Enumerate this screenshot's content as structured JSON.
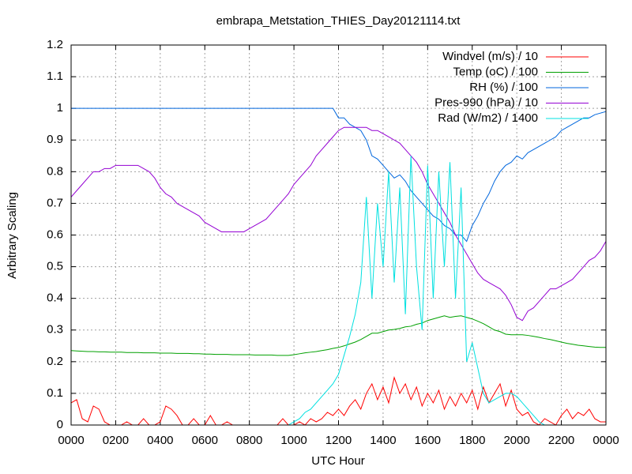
{
  "chart_data": {
    "type": "line",
    "title": "embrapa_Metstation_THIES_Day20121114.txt",
    "xlabel": "UTC Hour",
    "ylabel": "Arbitrary Scaling",
    "xlim": [
      0,
      24
    ],
    "ylim": [
      0,
      1.2
    ],
    "xticks": [
      {
        "value": 0,
        "label": "0000"
      },
      {
        "value": 2,
        "label": "0200"
      },
      {
        "value": 4,
        "label": "0400"
      },
      {
        "value": 6,
        "label": "0600"
      },
      {
        "value": 8,
        "label": "0800"
      },
      {
        "value": 10,
        "label": "1000"
      },
      {
        "value": 12,
        "label": "1200"
      },
      {
        "value": 14,
        "label": "1400"
      },
      {
        "value": 16,
        "label": "1600"
      },
      {
        "value": 18,
        "label": "1800"
      },
      {
        "value": 20,
        "label": "2000"
      },
      {
        "value": 22,
        "label": "2200"
      },
      {
        "value": 24,
        "label": "0000"
      }
    ],
    "yticks": [
      0,
      0.1,
      0.2,
      0.3,
      0.4,
      0.5,
      0.6,
      0.7,
      0.8,
      0.9,
      1,
      1.1,
      1.2
    ],
    "grid": true,
    "legend": "top-right",
    "x": [
      0,
      0.25,
      0.5,
      0.75,
      1,
      1.25,
      1.5,
      1.75,
      2,
      2.25,
      2.5,
      2.75,
      3,
      3.25,
      3.5,
      3.75,
      4,
      4.25,
      4.5,
      4.75,
      5,
      5.25,
      5.5,
      5.75,
      6,
      6.25,
      6.5,
      6.75,
      7,
      7.25,
      7.5,
      7.75,
      8,
      8.25,
      8.5,
      8.75,
      9,
      9.25,
      9.5,
      9.75,
      10,
      10.25,
      10.5,
      10.75,
      11,
      11.25,
      11.5,
      11.75,
      12,
      12.25,
      12.5,
      12.75,
      13,
      13.25,
      13.5,
      13.75,
      14,
      14.25,
      14.5,
      14.75,
      15,
      15.25,
      15.5,
      15.75,
      16,
      16.25,
      16.5,
      16.75,
      17,
      17.25,
      17.5,
      17.75,
      18,
      18.25,
      18.5,
      18.75,
      19,
      19.25,
      19.5,
      19.75,
      20,
      20.25,
      20.5,
      20.75,
      21,
      21.25,
      21.5,
      21.75,
      22,
      22.25,
      22.5,
      22.75,
      23,
      23.25,
      23.5,
      23.75,
      24
    ],
    "series": [
      {
        "name": "Windvel (m/s) / 10",
        "color": "#ff0000",
        "values": [
          0.07,
          0.08,
          0.02,
          0.01,
          0.06,
          0.05,
          0.01,
          0,
          0,
          0,
          0.01,
          0,
          0,
          0.02,
          0,
          0,
          0.01,
          0.06,
          0.05,
          0.03,
          0,
          0,
          0.02,
          0,
          0,
          0.03,
          0,
          0,
          0.01,
          0,
          0,
          0,
          0,
          0,
          0,
          0,
          0,
          0,
          0.02,
          0,
          0,
          0.01,
          0,
          0.02,
          0.01,
          0.02,
          0.04,
          0.03,
          0.05,
          0.03,
          0.06,
          0.08,
          0.05,
          0.1,
          0.13,
          0.08,
          0.12,
          0.07,
          0.15,
          0.1,
          0.13,
          0.08,
          0.12,
          0.06,
          0.1,
          0.07,
          0.11,
          0.05,
          0.09,
          0.06,
          0.1,
          0.07,
          0.11,
          0.05,
          0.12,
          0.07,
          0.1,
          0.13,
          0.06,
          0.11,
          0.05,
          0.03,
          0.04,
          0.01,
          0,
          0.02,
          0.01,
          0,
          0.03,
          0.05,
          0.02,
          0.04,
          0.03,
          0.05,
          0.02,
          0.01,
          0.01
        ]
      },
      {
        "name": "Temp (oC) / 100",
        "color": "#00a000",
        "values": [
          0.235,
          0.234,
          0.233,
          0.232,
          0.232,
          0.231,
          0.231,
          0.23,
          0.23,
          0.23,
          0.229,
          0.229,
          0.229,
          0.228,
          0.228,
          0.228,
          0.227,
          0.227,
          0.227,
          0.226,
          0.226,
          0.226,
          0.225,
          0.225,
          0.224,
          0.224,
          0.223,
          0.223,
          0.223,
          0.222,
          0.222,
          0.222,
          0.222,
          0.221,
          0.221,
          0.221,
          0.221,
          0.22,
          0.22,
          0.22,
          0.222,
          0.225,
          0.228,
          0.23,
          0.232,
          0.235,
          0.238,
          0.242,
          0.245,
          0.25,
          0.256,
          0.262,
          0.27,
          0.28,
          0.29,
          0.29,
          0.295,
          0.3,
          0.302,
          0.305,
          0.31,
          0.312,
          0.318,
          0.322,
          0.33,
          0.335,
          0.34,
          0.345,
          0.34,
          0.343,
          0.345,
          0.34,
          0.335,
          0.328,
          0.32,
          0.31,
          0.3,
          0.295,
          0.287,
          0.285,
          0.285,
          0.285,
          0.283,
          0.28,
          0.277,
          0.273,
          0.27,
          0.266,
          0.262,
          0.258,
          0.255,
          0.252,
          0.25,
          0.248,
          0.246,
          0.245,
          0.245
        ]
      },
      {
        "name": "RH (%) / 100",
        "color": "#0066dd",
        "values": [
          1,
          1,
          1,
          1,
          1,
          1,
          1,
          1,
          1,
          1,
          1,
          1,
          1,
          1,
          1,
          1,
          1,
          1,
          1,
          1,
          1,
          1,
          1,
          1,
          1,
          1,
          1,
          1,
          1,
          1,
          1,
          1,
          1,
          1,
          1,
          1,
          1,
          1,
          1,
          1,
          1,
          1,
          1,
          1,
          1,
          1,
          1,
          1,
          0.97,
          0.97,
          0.95,
          0.94,
          0.93,
          0.9,
          0.85,
          0.84,
          0.82,
          0.8,
          0.78,
          0.79,
          0.77,
          0.74,
          0.72,
          0.7,
          0.68,
          0.66,
          0.65,
          0.63,
          0.62,
          0.6,
          0.6,
          0.58,
          0.63,
          0.66,
          0.7,
          0.73,
          0.77,
          0.8,
          0.82,
          0.83,
          0.85,
          0.84,
          0.86,
          0.87,
          0.88,
          0.89,
          0.9,
          0.91,
          0.93,
          0.94,
          0.95,
          0.96,
          0.97,
          0.97,
          0.98,
          0.985,
          0.99
        ]
      },
      {
        "name": "Pres-990 (hPa) / 10",
        "color": "#9400d3",
        "values": [
          0.72,
          0.74,
          0.76,
          0.78,
          0.8,
          0.8,
          0.81,
          0.81,
          0.82,
          0.82,
          0.82,
          0.82,
          0.82,
          0.81,
          0.8,
          0.78,
          0.75,
          0.73,
          0.72,
          0.7,
          0.69,
          0.68,
          0.67,
          0.66,
          0.64,
          0.63,
          0.62,
          0.61,
          0.61,
          0.61,
          0.61,
          0.61,
          0.62,
          0.63,
          0.64,
          0.65,
          0.67,
          0.69,
          0.71,
          0.73,
          0.76,
          0.78,
          0.8,
          0.82,
          0.85,
          0.87,
          0.89,
          0.91,
          0.93,
          0.94,
          0.94,
          0.94,
          0.94,
          0.94,
          0.93,
          0.93,
          0.92,
          0.91,
          0.9,
          0.89,
          0.87,
          0.85,
          0.83,
          0.8,
          0.76,
          0.73,
          0.7,
          0.67,
          0.64,
          0.6,
          0.57,
          0.54,
          0.51,
          0.48,
          0.46,
          0.45,
          0.44,
          0.43,
          0.41,
          0.38,
          0.34,
          0.33,
          0.36,
          0.37,
          0.39,
          0.41,
          0.43,
          0.43,
          0.44,
          0.45,
          0.46,
          0.48,
          0.5,
          0.52,
          0.53,
          0.55,
          0.58
        ]
      },
      {
        "name": "Rad (W/m2) / 1400",
        "color": "#00e0e0",
        "values": [
          0,
          0,
          0,
          0,
          0,
          0,
          0,
          0,
          0,
          0,
          0,
          0,
          0,
          0,
          0,
          0,
          0,
          0,
          0,
          0,
          0,
          0,
          0,
          0,
          0,
          0,
          0,
          0,
          0,
          0,
          0,
          0,
          0,
          0,
          0,
          0,
          0,
          0,
          0,
          0,
          0.01,
          0.02,
          0.04,
          0.05,
          0.07,
          0.09,
          0.11,
          0.13,
          0.16,
          0.22,
          0.28,
          0.35,
          0.45,
          0.72,
          0.4,
          0.7,
          0.5,
          0.8,
          0.45,
          0.75,
          0.35,
          0.85,
          0.5,
          0.3,
          0.82,
          0.4,
          0.8,
          0.5,
          0.83,
          0.4,
          0.75,
          0.2,
          0.26,
          0.18,
          0.1,
          0.07,
          0.08,
          0.09,
          0.1,
          0.1,
          0.09,
          0.07,
          0.05,
          0.03,
          0.01,
          0,
          0,
          0,
          0,
          0,
          0,
          0,
          0,
          0,
          0,
          0,
          0
        ]
      }
    ]
  }
}
